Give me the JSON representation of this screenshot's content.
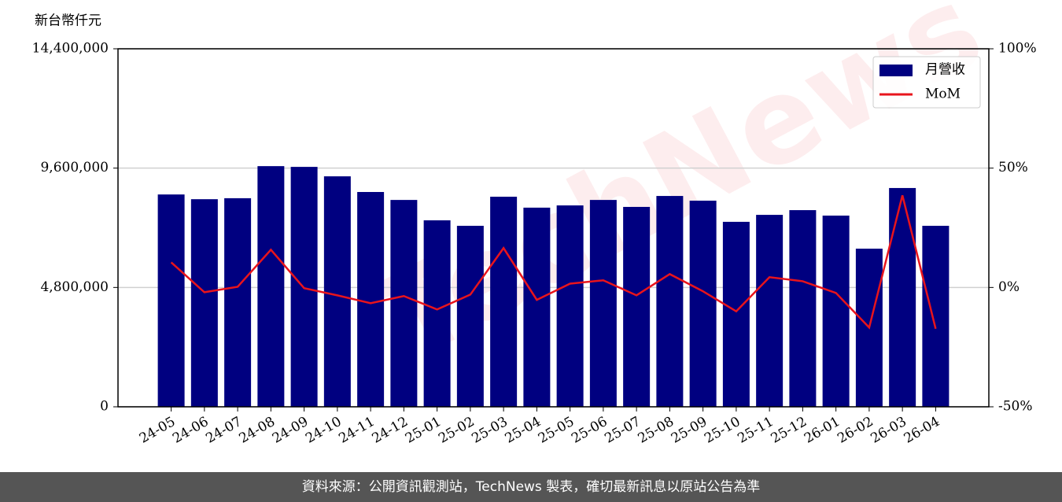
{
  "chart_data": {
    "type": "bar",
    "y_axis_label": "新台幣仟元",
    "source": "資料來源：公開資訊觀測站，TechNews 製表，確切最新訊息以原站公告為準",
    "watermark": "TechNews",
    "categories": [
      "24-05",
      "24-06",
      "24-07",
      "24-08",
      "24-09",
      "24-10",
      "24-11",
      "24-12",
      "25-01",
      "25-02",
      "25-03",
      "25-04",
      "25-05",
      "25-06",
      "25-07",
      "25-08",
      "25-09",
      "25-10",
      "25-11",
      "25-12",
      "26-01",
      "26-02",
      "26-03",
      "26-04"
    ],
    "series": [
      {
        "name": "月營收",
        "type": "bar",
        "color": "#000080",
        "values": [
          8540000,
          8350000,
          8390000,
          9680000,
          9650000,
          9270000,
          8640000,
          8320000,
          7500000,
          7280000,
          8450000,
          8010000,
          8100000,
          8320000,
          8040000,
          8480000,
          8290000,
          7440000,
          7720000,
          7910000,
          7690000,
          6360000,
          8800000,
          7280000
        ]
      },
      {
        "name": "MoM",
        "type": "line",
        "axis": "y2",
        "color": "#e8141c",
        "values": [
          10.5,
          -2.0,
          0.3,
          15.8,
          -0.3,
          -3.3,
          -6.6,
          -3.6,
          -9.2,
          -3.0,
          16.5,
          -5.2,
          1.6,
          3.0,
          -3.3,
          5.6,
          -1.6,
          -10.0,
          4.3,
          2.6,
          -2.3,
          -16.8,
          38.6,
          -17.3
        ]
      }
    ],
    "ylim": [
      0,
      14400000
    ],
    "yticks": [
      0,
      {
        "value": 4800000,
        "label": "4,800,000"
      },
      {
        "value": 9600000,
        "label": "9,600,000"
      },
      {
        "value": 14400000,
        "label": "14,400,000"
      }
    ],
    "y2lim": [
      -50,
      100
    ],
    "y2ticks": [
      {
        "value": -50,
        "label": "-50%"
      },
      {
        "value": 0,
        "label": "0%"
      },
      {
        "value": 50,
        "label": "50%"
      },
      {
        "value": 100,
        "label": "100%"
      }
    ],
    "grid": true,
    "legend": "upper right"
  }
}
